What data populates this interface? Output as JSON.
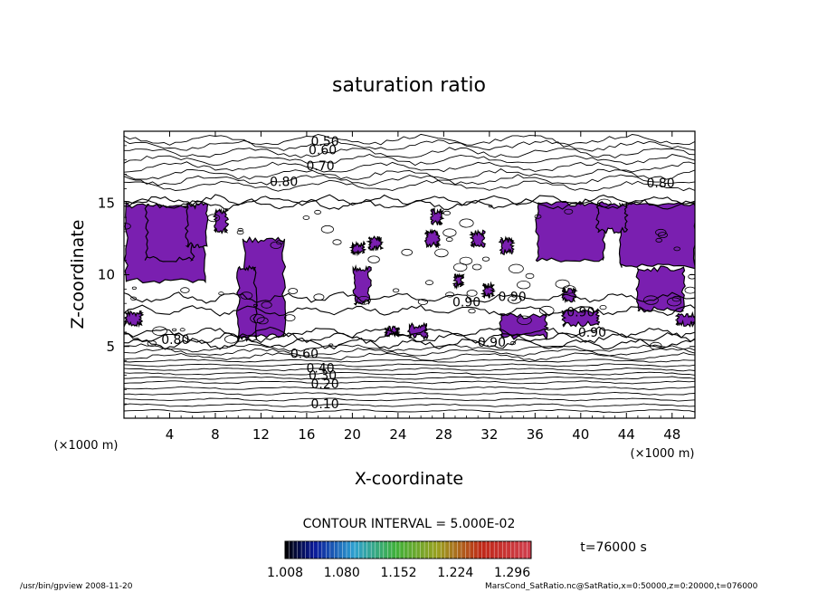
{
  "chart_data": {
    "type": "heatmap",
    "title": "saturation ratio",
    "xlabel": "X-coordinate",
    "ylabel": "Z-coordinate",
    "x_unit_left": "(×1000 m)",
    "x_unit_right": "(×1000 m)",
    "xlim": [
      0,
      50
    ],
    "ylim": [
      0,
      20
    ],
    "x_ticks": [
      4,
      8,
      12,
      16,
      20,
      24,
      28,
      32,
      36,
      40,
      44,
      48
    ],
    "y_ticks": [
      5,
      10,
      15
    ],
    "contour_interval_text": "CONTOUR INTERVAL = 5.000E-02",
    "time_text": "t=76000 s",
    "colorbar_ticks": [
      "1.008",
      "1.080",
      "1.152",
      "1.224",
      "1.296"
    ],
    "colorbar_range": [
      1.008,
      1.32
    ],
    "shade_color": "#7a1fb0",
    "contour_labels": [
      {
        "text": "0.50",
        "x": 17.6,
        "z": 19.3
      },
      {
        "text": "0.60",
        "x": 17.4,
        "z": 18.7
      },
      {
        "text": "0.70",
        "x": 17.2,
        "z": 17.6
      },
      {
        "text": "0.80",
        "x": 14.0,
        "z": 16.5
      },
      {
        "text": "0.80",
        "x": 47.0,
        "z": 16.4
      },
      {
        "text": "0.80",
        "x": 4.5,
        "z": 5.5
      },
      {
        "text": "0.90",
        "x": 34.0,
        "z": 8.5
      },
      {
        "text": "0.90",
        "x": 30.0,
        "z": 8.1
      },
      {
        "text": "0.90",
        "x": 40.0,
        "z": 7.4
      },
      {
        "text": "0.90",
        "x": 32.2,
        "z": 5.3
      },
      {
        "text": "0.90",
        "x": 41.0,
        "z": 6.0
      },
      {
        "text": "0.60",
        "x": 15.8,
        "z": 4.5
      },
      {
        "text": "0.40",
        "x": 17.2,
        "z": 3.5
      },
      {
        "text": "0.30",
        "x": 17.4,
        "z": 3.0
      },
      {
        "text": "0.20",
        "x": 17.6,
        "z": 2.4
      },
      {
        "text": "0.10",
        "x": 17.6,
        "z": 1.0
      }
    ],
    "supersaturated_regions": [
      {
        "x": [
          0.2,
          7.0
        ],
        "z": [
          9.5,
          14.9
        ]
      },
      {
        "x": [
          2.0,
          6.0
        ],
        "z": [
          11.0,
          14.9
        ]
      },
      {
        "x": [
          10.5,
          14.0
        ],
        "z": [
          5.7,
          12.5
        ]
      },
      {
        "x": [
          10.0,
          11.5
        ],
        "z": [
          5.5,
          10.5
        ]
      },
      {
        "x": [
          5.5,
          7.2
        ],
        "z": [
          12.0,
          14.9
        ]
      },
      {
        "x": [
          8.0,
          9.0
        ],
        "z": [
          13.0,
          14.5
        ]
      },
      {
        "x": [
          20.2,
          21.5
        ],
        "z": [
          8.0,
          10.5
        ]
      },
      {
        "x": [
          36.2,
          42.0
        ],
        "z": [
          11.0,
          15.0
        ]
      },
      {
        "x": [
          43.5,
          50.0
        ],
        "z": [
          10.5,
          15.0
        ]
      },
      {
        "x": [
          45.0,
          49.0
        ],
        "z": [
          7.5,
          10.5
        ]
      },
      {
        "x": [
          41.5,
          44.0
        ],
        "z": [
          13.0,
          15.0
        ]
      },
      {
        "x": [
          0.2,
          1.5
        ],
        "z": [
          6.5,
          7.4
        ]
      },
      {
        "x": [
          48.5,
          50.0
        ],
        "z": [
          6.5,
          7.3
        ]
      },
      {
        "x": [
          33.0,
          37.0
        ],
        "z": [
          5.6,
          7.2
        ]
      },
      {
        "x": [
          25.0,
          26.5
        ],
        "z": [
          5.6,
          6.5
        ]
      },
      {
        "x": [
          23.0,
          24.0
        ],
        "z": [
          5.8,
          6.3
        ]
      },
      {
        "x": [
          30.5,
          31.5
        ],
        "z": [
          12.0,
          13.0
        ]
      },
      {
        "x": [
          33.0,
          34.0
        ],
        "z": [
          11.5,
          12.5
        ]
      },
      {
        "x": [
          26.5,
          27.5
        ],
        "z": [
          12.0,
          13.0
        ]
      },
      {
        "x": [
          21.5,
          22.5
        ],
        "z": [
          11.8,
          12.6
        ]
      },
      {
        "x": [
          20.0,
          21.0
        ],
        "z": [
          11.5,
          12.2
        ]
      },
      {
        "x": [
          29.0,
          29.6
        ],
        "z": [
          9.2,
          10.0
        ]
      },
      {
        "x": [
          31.5,
          32.3
        ],
        "z": [
          8.5,
          9.3
        ]
      },
      {
        "x": [
          27.0,
          27.8
        ],
        "z": [
          13.5,
          14.5
        ]
      },
      {
        "x": [
          38.5,
          39.5
        ],
        "z": [
          8.2,
          9.0
        ]
      },
      {
        "x": [
          38.5,
          41.5
        ],
        "z": [
          6.5,
          7.5
        ]
      }
    ],
    "contour_levels_z": [
      0.5,
      0.9,
      1.3,
      1.7,
      2.1,
      2.5,
      2.8,
      3.1,
      3.4,
      3.7,
      4.0,
      4.3,
      4.6,
      4.9,
      16.2,
      16.6,
      17.0,
      17.5,
      18.0,
      18.5,
      19.0,
      19.4
    ]
  },
  "footer": {
    "left": "/usr/bin/gpview   2008-11-20",
    "right": "MarsCond_SatRatio.nc@SatRatio,x=0:50000,z=0:20000,t=076000"
  }
}
